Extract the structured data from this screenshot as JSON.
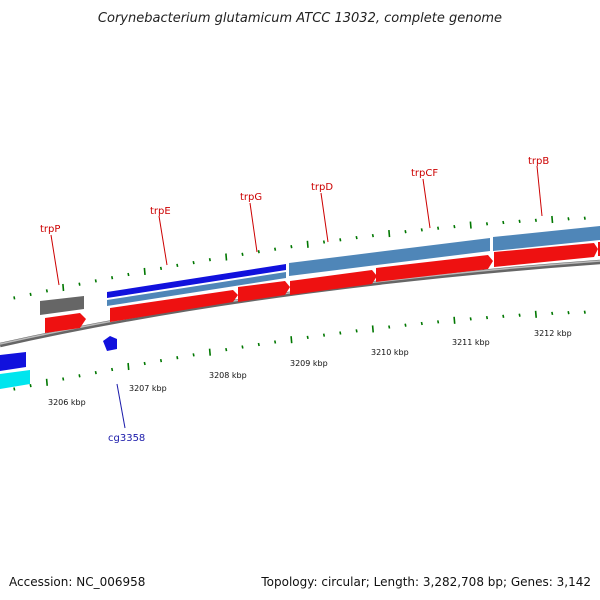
{
  "title": "Corynebacterium glutamicum ATCC 13032, complete genome",
  "footer": {
    "accession": "Accession: NC_006958",
    "summary": "Topology: circular; Length: 3,282,708 bp; Genes: 3,142"
  },
  "colors": {
    "gene_red": "#ee1111",
    "gene_blue": "#1111dd",
    "cds_steel": "#4f86b8",
    "gray_feature": "#666666",
    "cyan_feature": "#00e5ee",
    "backbone": "#888888",
    "tick_green": "#007700",
    "label_red": "#cc0000",
    "label_blue": "#1a1aaa"
  },
  "gene_labels": [
    {
      "id": "trpP",
      "text": "trpP",
      "color": "red"
    },
    {
      "id": "trpE",
      "text": "trpE",
      "color": "red"
    },
    {
      "id": "trpG",
      "text": "trpG",
      "color": "red"
    },
    {
      "id": "trpD",
      "text": "trpD",
      "color": "red"
    },
    {
      "id": "trpCF",
      "text": "trpCF",
      "color": "red"
    },
    {
      "id": "trpB",
      "text": "trpB",
      "color": "red"
    },
    {
      "id": "cg3358",
      "text": "cg3358",
      "color": "blue"
    }
  ],
  "scale_labels": [
    "3206 kbp",
    "3207 kbp",
    "3208 kbp",
    "3209 kbp",
    "3210 kbp",
    "3211 kbp",
    "3212 kbp"
  ]
}
